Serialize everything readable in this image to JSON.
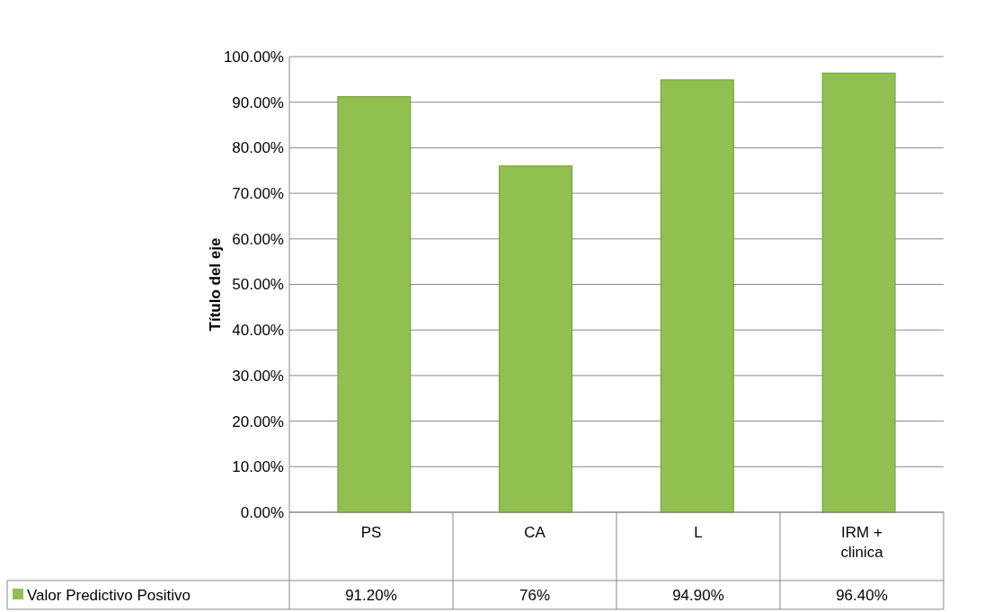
{
  "chart_data": {
    "type": "bar",
    "ylabel": "Título del eje",
    "categories": [
      "PS",
      "CA",
      "L",
      "IRM + clinica"
    ],
    "series": [
      {
        "name": "Valor Predictivo Positivo",
        "color": "#92c050",
        "values": [
          91.2,
          76,
          94.9,
          96.4
        ],
        "value_labels": [
          "91.20%",
          "76%",
          "94.90%",
          "96.40%"
        ]
      }
    ],
    "ylim": [
      0,
      100
    ],
    "yticks": [
      {
        "value": 0,
        "label": "0.00%"
      },
      {
        "value": 10,
        "label": "10.00%"
      },
      {
        "value": 20,
        "label": "20.00%"
      },
      {
        "value": 30,
        "label": "30.00%"
      },
      {
        "value": 40,
        "label": "40.00%"
      },
      {
        "value": 50,
        "label": "50.00%"
      },
      {
        "value": 60,
        "label": "60.00%"
      },
      {
        "value": 70,
        "label": "70.00%"
      },
      {
        "value": 80,
        "label": "80.00%"
      },
      {
        "value": 90,
        "label": "90.00%"
      },
      {
        "value": 100,
        "label": "100.00%"
      }
    ],
    "grid": true,
    "legend": "bottom left"
  }
}
